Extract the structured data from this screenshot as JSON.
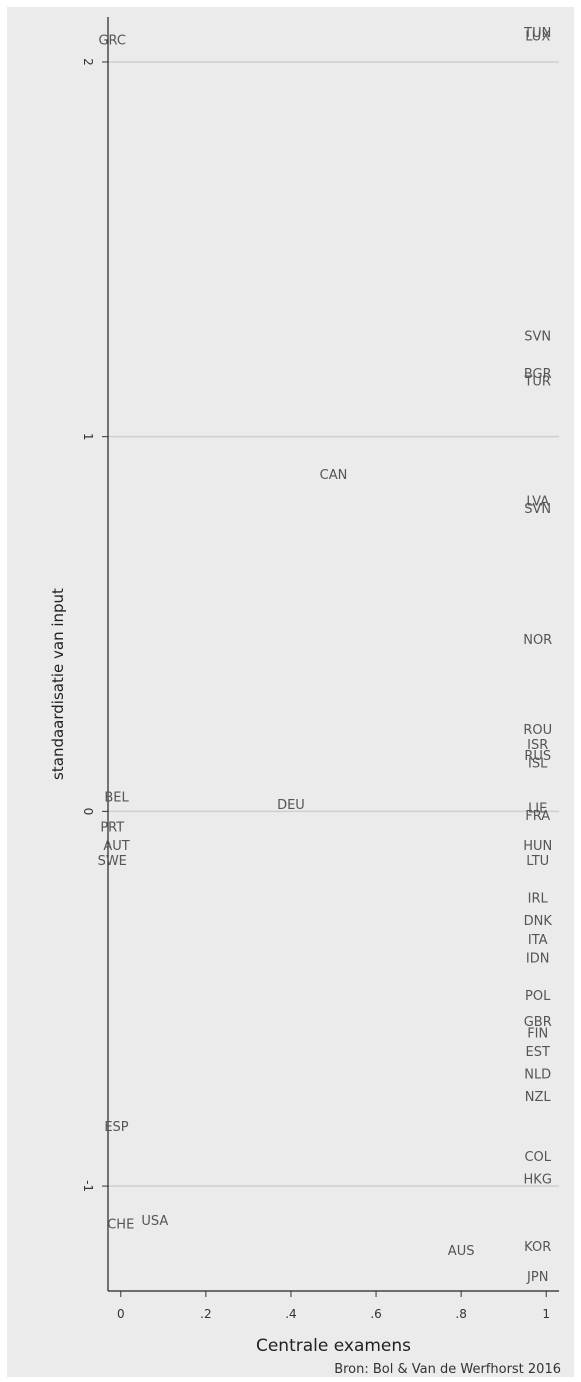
{
  "chart_data": {
    "type": "scatter",
    "xlabel": "Centrale examens",
    "ylabel": "standaardisatie van input",
    "xlim": [
      -0.03,
      1.03
    ],
    "ylim": [
      -1.28,
      2.12
    ],
    "x_ticks": [
      {
        "value": 0,
        "label": "0"
      },
      {
        "value": 0.2,
        "label": ".2"
      },
      {
        "value": 0.4,
        "label": ".4"
      },
      {
        "value": 0.6,
        "label": ".6"
      },
      {
        "value": 0.8,
        "label": ".8"
      },
      {
        "value": 1,
        "label": "1"
      }
    ],
    "y_ticks": [
      {
        "value": 2,
        "label": "2"
      },
      {
        "value": 1,
        "label": "1"
      },
      {
        "value": 0,
        "label": "0"
      },
      {
        "value": -1,
        "label": "-1"
      }
    ],
    "grid": "horizontal",
    "points": [
      {
        "label": "GRC",
        "x": -0.02,
        "y": 2.06
      },
      {
        "label": "TUN",
        "x": 0.98,
        "y": 2.08
      },
      {
        "label": "LUX",
        "x": 0.98,
        "y": 2.07
      },
      {
        "label": "SVN",
        "x": 0.98,
        "y": 1.27
      },
      {
        "label": "BGR",
        "x": 0.98,
        "y": 1.17
      },
      {
        "label": "TUR",
        "x": 0.98,
        "y": 1.15
      },
      {
        "label": "CAN",
        "x": 0.5,
        "y": 0.9
      },
      {
        "label": "LVA",
        "x": 0.98,
        "y": 0.83
      },
      {
        "label": "SVN",
        "x": 0.98,
        "y": 0.81
      },
      {
        "label": "NOR",
        "x": 0.98,
        "y": 0.46
      },
      {
        "label": "ROU",
        "x": 0.98,
        "y": 0.22
      },
      {
        "label": "ISR",
        "x": 0.98,
        "y": 0.18
      },
      {
        "label": "RUS",
        "x": 0.98,
        "y": 0.15
      },
      {
        "label": "ISL",
        "x": 0.98,
        "y": 0.13
      },
      {
        "label": "BEL",
        "x": -0.01,
        "y": 0.04
      },
      {
        "label": "DEU",
        "x": 0.4,
        "y": 0.02
      },
      {
        "label": "LIE",
        "x": 0.98,
        "y": 0.01
      },
      {
        "label": "FRA",
        "x": 0.98,
        "y": -0.01
      },
      {
        "label": "PRT",
        "x": -0.02,
        "y": -0.04
      },
      {
        "label": "AUT",
        "x": -0.01,
        "y": -0.09
      },
      {
        "label": "HUN",
        "x": 0.98,
        "y": -0.09
      },
      {
        "label": "SWE",
        "x": -0.02,
        "y": -0.13
      },
      {
        "label": "LTU",
        "x": 0.98,
        "y": -0.13
      },
      {
        "label": "IRL",
        "x": 0.98,
        "y": -0.23
      },
      {
        "label": "DNK",
        "x": 0.98,
        "y": -0.29
      },
      {
        "label": "ITA",
        "x": 0.98,
        "y": -0.34
      },
      {
        "label": "IDN",
        "x": 0.98,
        "y": -0.39
      },
      {
        "label": "POL",
        "x": 0.98,
        "y": -0.49
      },
      {
        "label": "GBR",
        "x": 0.98,
        "y": -0.56
      },
      {
        "label": "FIN",
        "x": 0.98,
        "y": -0.59
      },
      {
        "label": "EST",
        "x": 0.98,
        "y": -0.64
      },
      {
        "label": "NLD",
        "x": 0.98,
        "y": -0.7
      },
      {
        "label": "NZL",
        "x": 0.98,
        "y": -0.76
      },
      {
        "label": "ESP",
        "x": -0.01,
        "y": -0.84
      },
      {
        "label": "COL",
        "x": 0.98,
        "y": -0.92
      },
      {
        "label": "HKG",
        "x": 0.98,
        "y": -0.98
      },
      {
        "label": "USA",
        "x": 0.08,
        "y": -1.09
      },
      {
        "label": "CHE",
        "x": 0.0,
        "y": -1.1
      },
      {
        "label": "AUS",
        "x": 0.8,
        "y": -1.17
      },
      {
        "label": "KOR",
        "x": 0.98,
        "y": -1.16
      },
      {
        "label": "JPN",
        "x": 0.98,
        "y": -1.24
      }
    ]
  },
  "source": "Bron: Bol & Van de Werfhorst 2016"
}
